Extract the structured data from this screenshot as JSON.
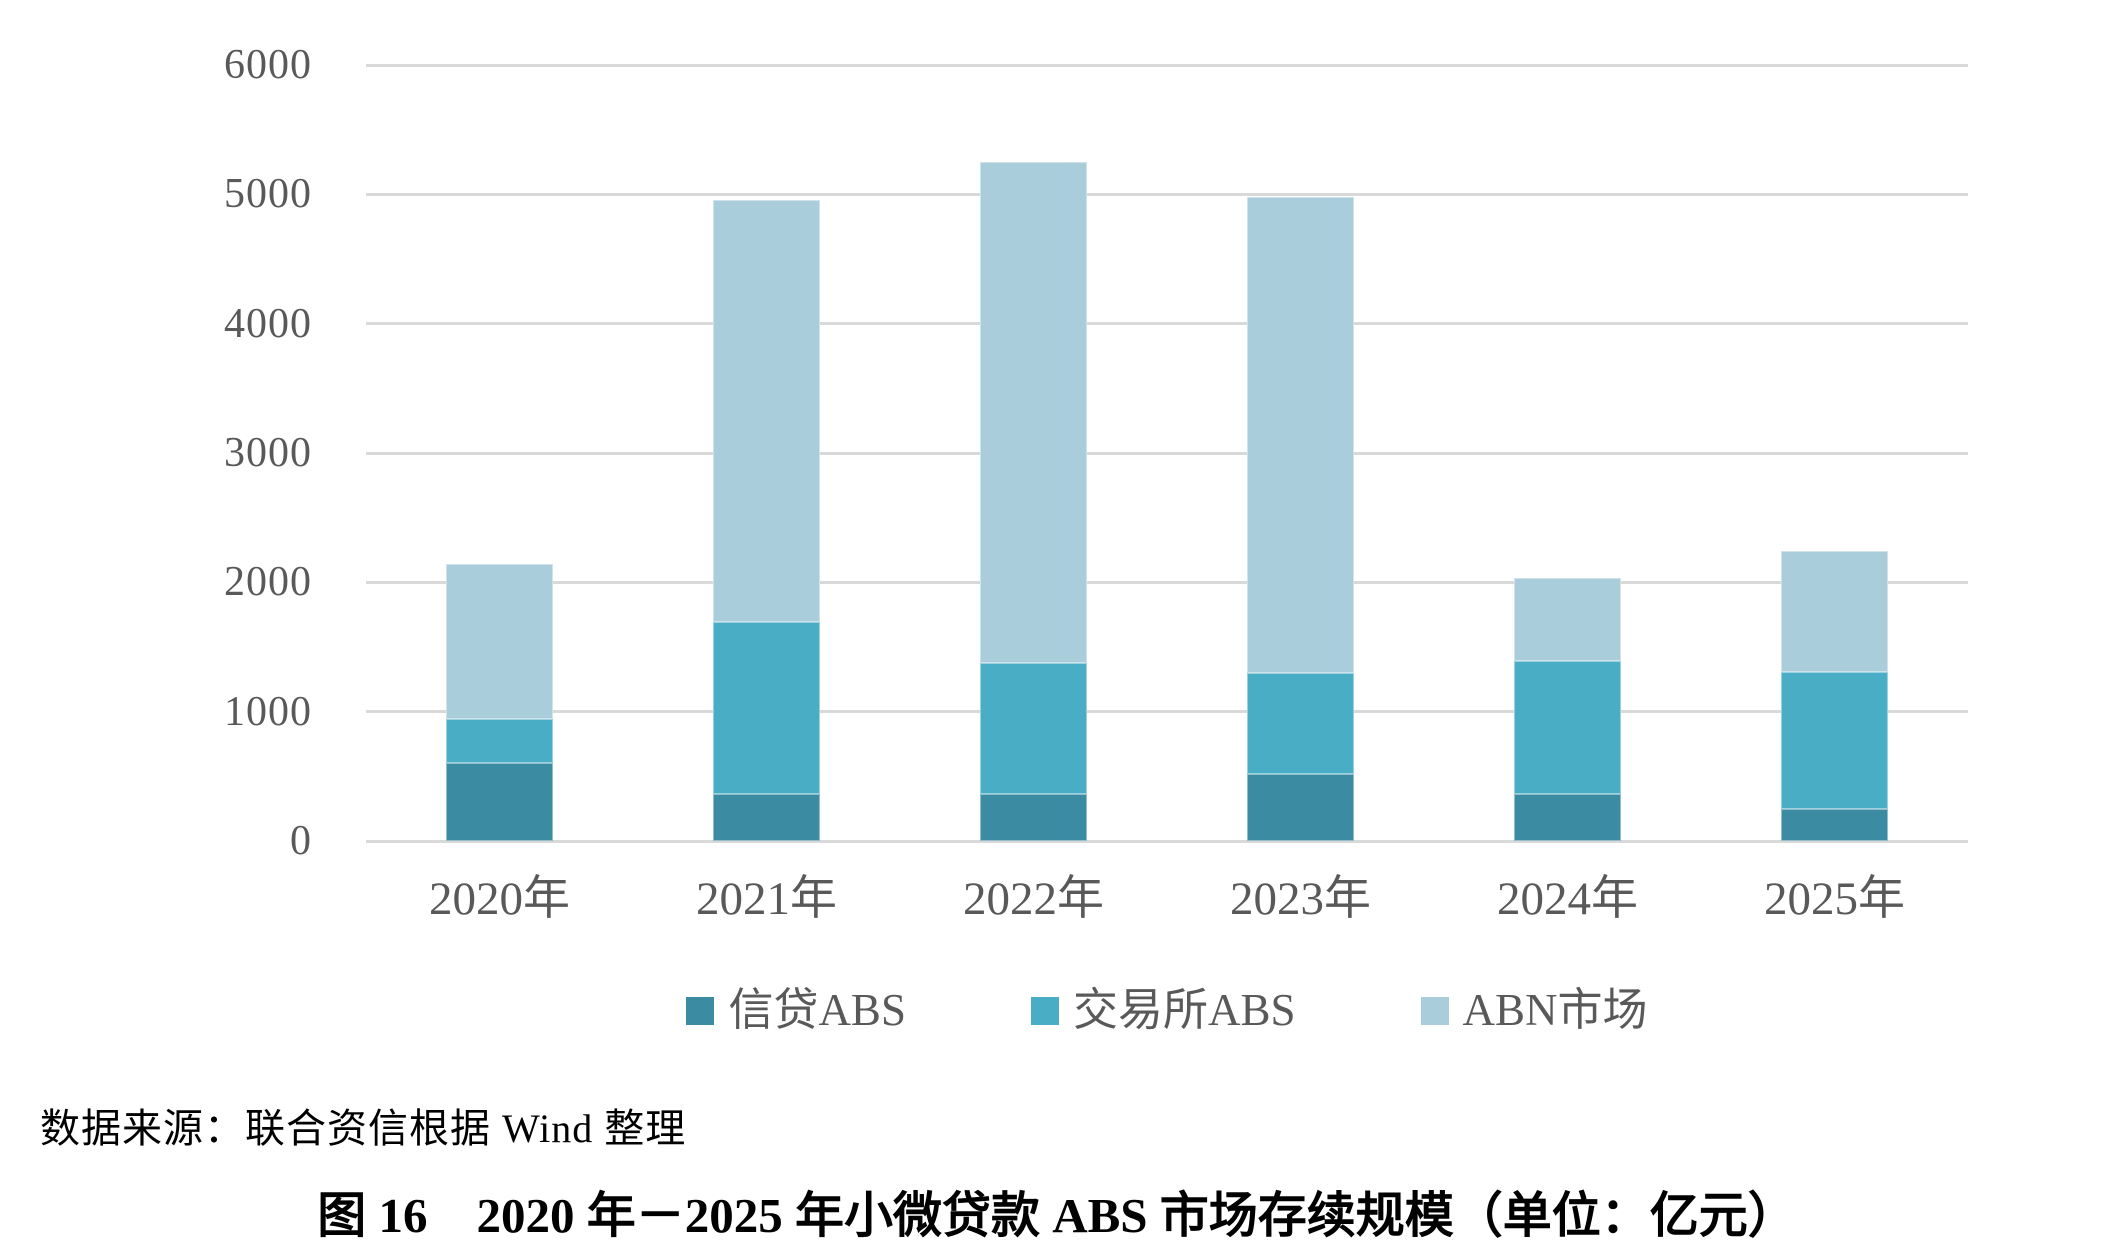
{
  "page": {
    "source_note": "数据来源：联合资信根据 Wind 整理",
    "caption": "图 16　2020 年－2025 年小微贷款 ABS 市场存续规模（单位：亿元）"
  },
  "chart_data": {
    "type": "bar",
    "stacked": true,
    "title": "2020年－2025年小微贷款ABS市场存续规模",
    "unit": "亿元",
    "categories": [
      "2020年",
      "2021年",
      "2022年",
      "2023年",
      "2024年",
      "2025年"
    ],
    "series": [
      {
        "name": "信贷ABS",
        "color": "#3b8ba3",
        "values": [
          600,
          360,
          360,
          520,
          360,
          250
        ]
      },
      {
        "name": "交易所ABS",
        "color": "#4aadc6",
        "values": [
          340,
          1330,
          1020,
          780,
          1030,
          1060
        ]
      },
      {
        "name": "ABN市场",
        "color": "#a9cdda",
        "values": [
          1200,
          3270,
          3870,
          3680,
          640,
          930
        ]
      }
    ],
    "totals": [
      2140,
      4960,
      5250,
      4980,
      2030,
      2240
    ],
    "ylim": [
      0,
      6000
    ],
    "yticks": [
      0,
      1000,
      2000,
      3000,
      4000,
      5000,
      6000
    ],
    "grid": "horizontal",
    "gridline_color": "#d9d9d9",
    "axis_text_color": "#595959",
    "legend_position": "bottom"
  }
}
